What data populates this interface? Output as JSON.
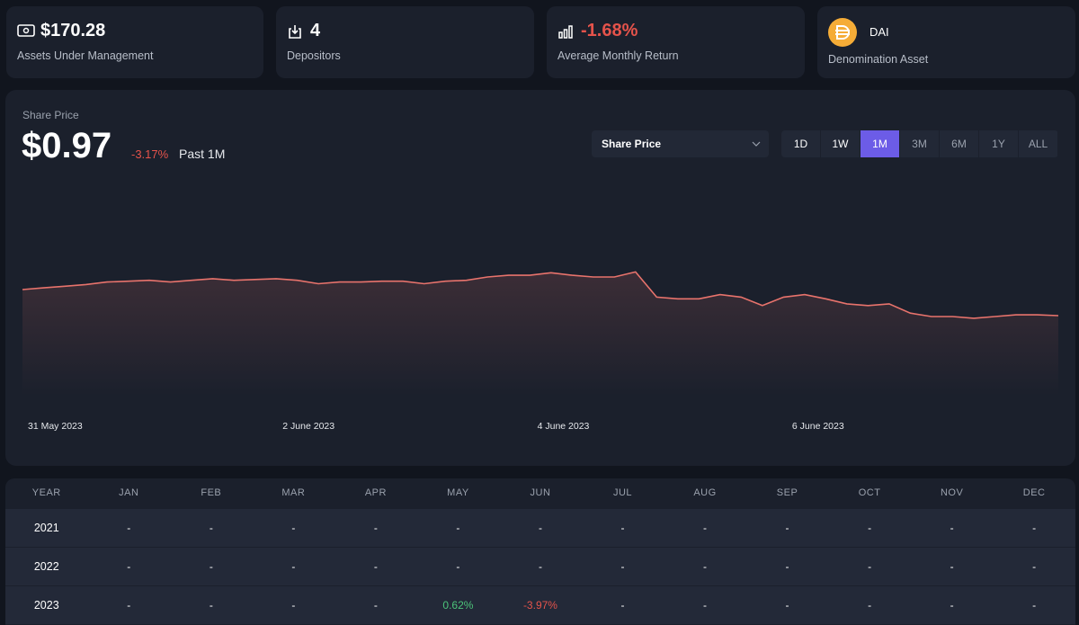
{
  "stats": [
    {
      "value": "$170.28",
      "label": "Assets Under Management"
    },
    {
      "value": "4",
      "label": "Depositors"
    },
    {
      "value": "-1.68%",
      "label": "Average Monthly Return"
    },
    {
      "value": "DAI",
      "label": "Denomination Asset"
    }
  ],
  "chart_data": {
    "type": "line",
    "label": "Share Price",
    "price": "$0.97",
    "change": "-3.17%",
    "period": "Past 1M",
    "select": "Share Price",
    "ranges": [
      "1D",
      "1W",
      "1M",
      "3M",
      "6M",
      "1Y",
      "ALL"
    ],
    "selected_range": "1M",
    "x_labels": [
      "31 May 2023",
      "2 June 2023",
      "4 June 2023",
      "6 June 2023"
    ],
    "ylim": [
      0.876,
      1.143
    ],
    "series": [
      {
        "color": "#e8736c",
        "values": [
          1.002,
          1.004,
          1.006,
          1.008,
          1.011,
          1.012,
          1.013,
          1.011,
          1.013,
          1.015,
          1.013,
          1.014,
          1.015,
          1.013,
          1.009,
          1.011,
          1.011,
          1.012,
          1.012,
          1.009,
          1.012,
          1.013,
          1.017,
          1.019,
          1.019,
          1.022,
          1.019,
          1.017,
          1.017,
          1.023,
          0.993,
          0.991,
          0.991,
          0.996,
          0.993,
          0.983,
          0.993,
          0.996,
          0.991,
          0.985,
          0.983,
          0.985,
          0.974,
          0.97,
          0.97,
          0.968,
          0.97,
          0.972,
          0.972,
          0.971
        ]
      }
    ]
  },
  "table": {
    "columns": [
      "YEAR",
      "JAN",
      "FEB",
      "MAR",
      "APR",
      "MAY",
      "JUN",
      "JUL",
      "AUG",
      "SEP",
      "OCT",
      "NOV",
      "DEC"
    ],
    "rows": [
      [
        "2021",
        "-",
        "-",
        "-",
        "-",
        "-",
        "-",
        "-",
        "-",
        "-",
        "-",
        "-",
        "-"
      ],
      [
        "2022",
        "-",
        "-",
        "-",
        "-",
        "-",
        "-",
        "-",
        "-",
        "-",
        "-",
        "-",
        "-"
      ],
      [
        "2023",
        "-",
        "-",
        "-",
        "-",
        "0.62%",
        "-3.97%",
        "-",
        "-",
        "-",
        "-",
        "-",
        "-"
      ]
    ]
  }
}
